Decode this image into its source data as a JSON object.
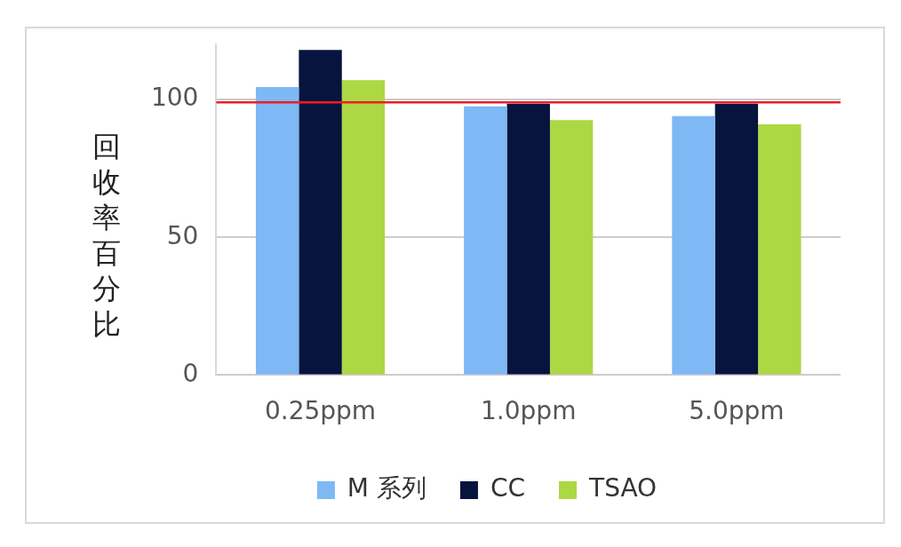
{
  "chart_data": {
    "type": "bar",
    "ylabel": "回收率百分比",
    "categories": [
      "0.25ppm",
      "1.0ppm",
      "5.0ppm"
    ],
    "series": [
      {
        "name": "M 系列",
        "color": "#7eb8f5",
        "values": [
          104.5,
          97.5,
          94
        ]
      },
      {
        "name": "CC",
        "color": "#06143e",
        "values": [
          118,
          98.5,
          98.5
        ]
      },
      {
        "name": "TSAO",
        "color": "#acd843",
        "values": [
          107,
          92.5,
          91
        ]
      }
    ],
    "ylim": [
      0,
      120
    ],
    "yticks": [
      0,
      50,
      100
    ],
    "grid": "y",
    "legend": "bottom",
    "ref_lines": [
      {
        "axis": "y",
        "value": 99,
        "color": "#ee1c25"
      }
    ]
  }
}
